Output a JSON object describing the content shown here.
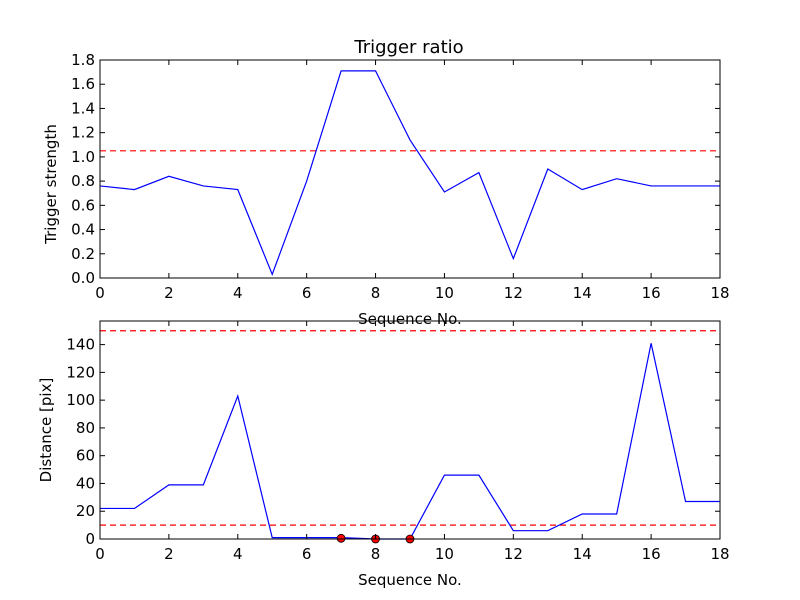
{
  "chart_data": [
    {
      "type": "line",
      "title": "Trigger ratio",
      "xlabel": "Sequence No.",
      "ylabel": "Trigger strength",
      "xlim": [
        0,
        18
      ],
      "ylim": [
        0,
        1.8
      ],
      "x_ticks": [
        0,
        2,
        4,
        6,
        8,
        10,
        12,
        14,
        16,
        18
      ],
      "y_ticks": [
        "0.0",
        "0.2",
        "0.4",
        "0.6",
        "0.8",
        "1.0",
        "1.2",
        "1.4",
        "1.6",
        "1.8"
      ],
      "series": [
        {
          "x": [
            0,
            1,
            2,
            3,
            4,
            5,
            6,
            7,
            8,
            9,
            10,
            11,
            12,
            13,
            14,
            15,
            16,
            17,
            18
          ],
          "values": [
            0.76,
            0.73,
            0.84,
            0.76,
            0.73,
            0.03,
            0.8,
            1.71,
            1.71,
            1.14,
            0.71,
            0.87,
            0.16,
            0.9,
            0.73,
            0.82,
            0.76,
            0.76,
            0.76
          ],
          "color": "#0000ff"
        }
      ],
      "hlines": [
        {
          "y": 1.05,
          "color": "#ff0000",
          "style": "dashed"
        }
      ],
      "grid": false
    },
    {
      "type": "line",
      "title": "",
      "xlabel": "Sequence No.",
      "ylabel": "Distance [pix]",
      "xlim": [
        0,
        18
      ],
      "ylim": [
        0,
        157
      ],
      "x_ticks": [
        0,
        2,
        4,
        6,
        8,
        10,
        12,
        14,
        16,
        18
      ],
      "y_ticks": [
        "0",
        "20",
        "40",
        "60",
        "80",
        "100",
        "120",
        "140"
      ],
      "series": [
        {
          "x": [
            0,
            1,
            2,
            3,
            4,
            5,
            6,
            7,
            8,
            9,
            10,
            11,
            12,
            13,
            14,
            15,
            16,
            17,
            18
          ],
          "values": [
            22,
            22,
            39,
            39,
            103,
            1,
            1,
            1,
            0,
            0,
            46,
            46,
            6,
            6,
            18,
            18,
            141,
            27,
            27
          ],
          "color": "#0000ff"
        }
      ],
      "markers": {
        "x": [
          7,
          8,
          9
        ],
        "y": [
          0.5,
          0,
          0
        ],
        "color": "#ff0000"
      },
      "hlines": [
        {
          "y": 150,
          "color": "#ff0000",
          "style": "dashed"
        },
        {
          "y": 10,
          "color": "#ff0000",
          "style": "dashed"
        }
      ],
      "grid": false
    }
  ]
}
